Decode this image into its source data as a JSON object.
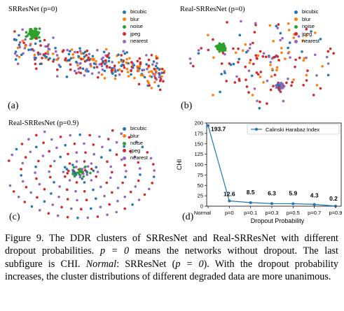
{
  "legend_labels": [
    "bicubic",
    "blur",
    "noise",
    "jpeg",
    "nearest"
  ],
  "colors": {
    "bicubic": "#1f77b4",
    "blur": "#ff7f0e",
    "noise": "#2ca02c",
    "jpeg": "#d62728",
    "nearest": "#9467bd"
  },
  "panels": [
    {
      "id": "a",
      "title": "SRResNet (p=0)",
      "label": "(a)"
    },
    {
      "id": "b",
      "title": "Real-SRResNet (p=0)",
      "label": "(b)"
    },
    {
      "id": "c",
      "title": "Real-SRResNet (p=0.9)",
      "label": "(c)"
    },
    {
      "id": "d",
      "label": "(d)"
    }
  ],
  "chart_data": {
    "type": "line",
    "x": [
      "Normal",
      "p=0",
      "p=0.1",
      "p=0.3",
      "p=0.5",
      "p=0.7",
      "p=0.9"
    ],
    "values": [
      193.7,
      12.6,
      8.5,
      6.3,
      5.9,
      4.3,
      0.2
    ],
    "data_labels": [
      "193.7",
      "12.6",
      "8.5",
      "6.3",
      "5.9",
      "4.3",
      "0.2"
    ],
    "series": [
      {
        "name": "Calinski Harabaz Index",
        "values": [
          193.7,
          12.6,
          8.5,
          6.3,
          5.9,
          4.3,
          0.2
        ]
      }
    ],
    "xlabel": "Dropout Probability",
    "ylabel": "CHI",
    "ylim": [
      0,
      200
    ],
    "yticks": [
      "0",
      "25",
      "50",
      "75",
      "100",
      "125",
      "150",
      "175",
      "200"
    ],
    "color": "#1f77b4",
    "legend_position": "top-right",
    "grid": false
  },
  "caption": {
    "fig": "Figure 9.",
    "p1": " The DDR clusters of SRResNet and Real-SRResNet with different dropout probabilities. ",
    "peq": "p = 0",
    "p2": " means the networks without dropout. The last subfigure is CHI. ",
    "normal": "Normal",
    "p3": ": SRResNet (",
    "peq2": "p = 0",
    "p4": "). With the dropout probability increases, the cluster distributions of different degraded data are more unanimous."
  }
}
